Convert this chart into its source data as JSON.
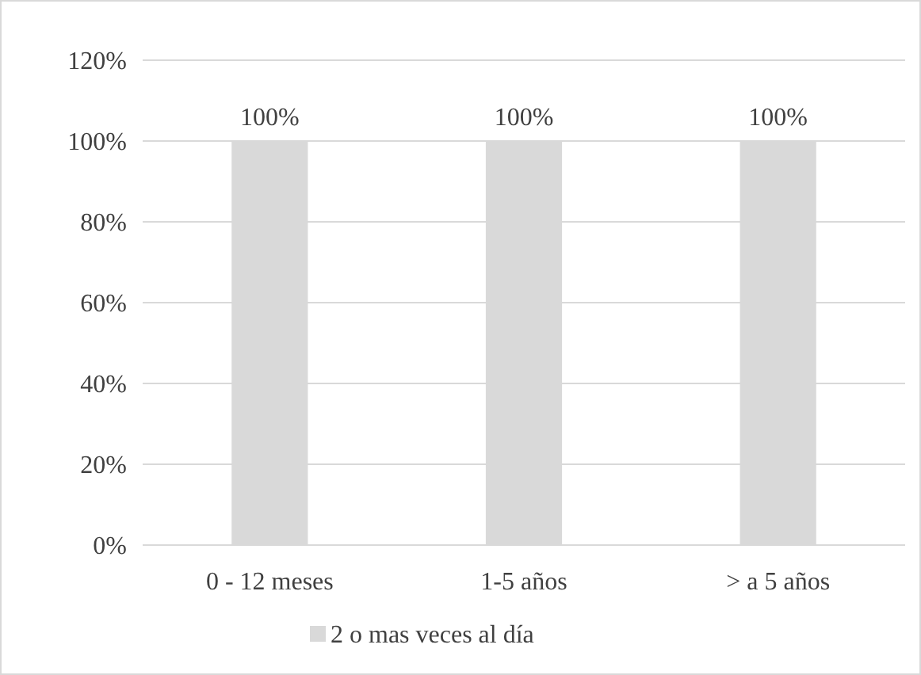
{
  "chart_data": {
    "type": "bar",
    "categories": [
      "0 - 12 meses",
      "1-5 años",
      "> a 5 años"
    ],
    "series": [
      {
        "name": "2 o mas veces al día",
        "color": "#d9d9d9",
        "values": [
          100,
          100,
          100
        ],
        "value_labels": [
          "100%",
          "100%",
          "100%"
        ]
      }
    ],
    "ylim": [
      0,
      120
    ],
    "yticks": [
      {
        "value": 0,
        "label": "0%"
      },
      {
        "value": 20,
        "label": "20%"
      },
      {
        "value": 40,
        "label": "40%"
      },
      {
        "value": 60,
        "label": "60%"
      },
      {
        "value": 80,
        "label": "80%"
      },
      {
        "value": 100,
        "label": "100%"
      },
      {
        "value": 120,
        "label": "120%"
      }
    ],
    "grid": "y",
    "legend": "bottom"
  }
}
